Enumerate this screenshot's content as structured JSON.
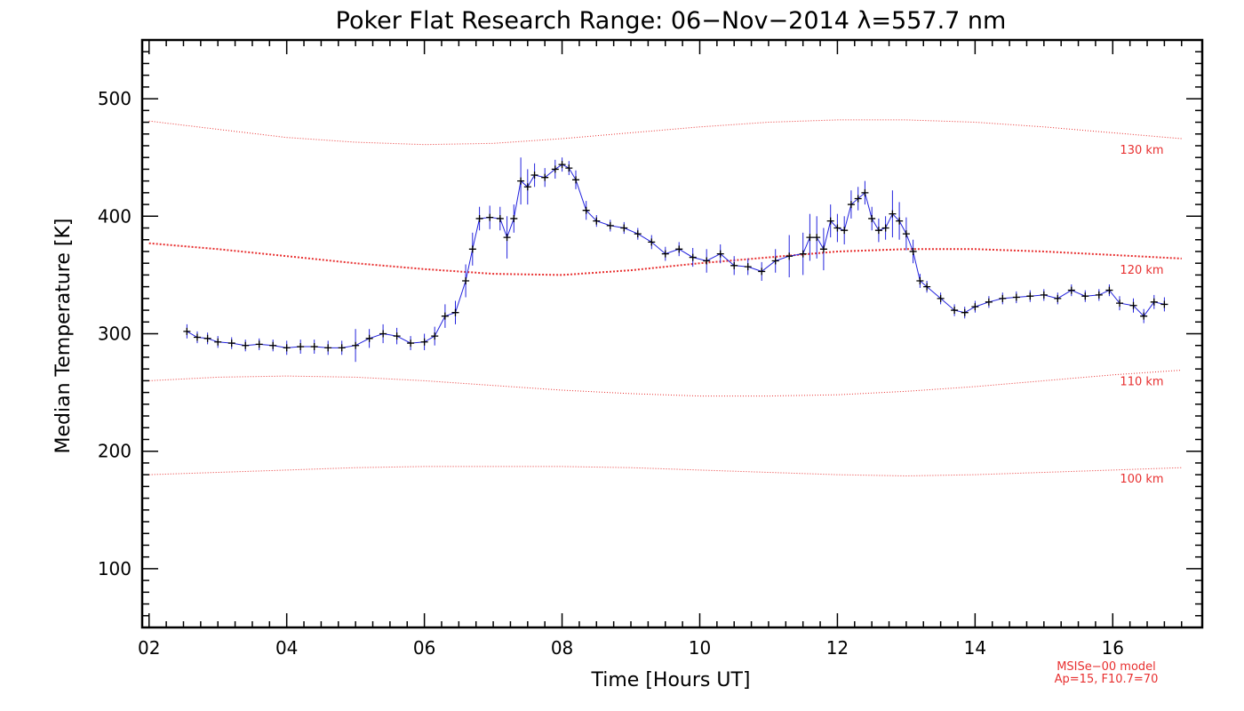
{
  "chart_data": {
    "type": "line",
    "title": "Poker Flat Research Range: 06−Nov−2014 λ=557.7 nm",
    "xlabel": "Time [Hours UT]",
    "ylabel": "Median Temperature [K]",
    "xlim": [
      1.9,
      17.3
    ],
    "ylim": [
      50,
      550
    ],
    "x_ticks": [
      2,
      4,
      6,
      8,
      10,
      12,
      14,
      16
    ],
    "x_tick_labels": [
      "02",
      "04",
      "06",
      "08",
      "10",
      "12",
      "14",
      "16"
    ],
    "y_ticks": [
      100,
      200,
      300,
      400,
      500
    ],
    "y_tick_labels": [
      "100",
      "200",
      "300",
      "400",
      "500"
    ],
    "grid": false,
    "series": [
      {
        "color": "#000000",
        "error_color": "#2222dd",
        "x": [
          2.55,
          2.7,
          2.85,
          3.0,
          3.2,
          3.4,
          3.6,
          3.8,
          4.0,
          4.2,
          4.4,
          4.6,
          4.8,
          5.0,
          5.2,
          5.4,
          5.6,
          5.8,
          6.0,
          6.15,
          6.3,
          6.45,
          6.6,
          6.7,
          6.8,
          6.95,
          7.1,
          7.2,
          7.3,
          7.4,
          7.5,
          7.6,
          7.75,
          7.9,
          8.0,
          8.1,
          8.2,
          8.35,
          8.5,
          8.7,
          8.9,
          9.1,
          9.3,
          9.5,
          9.7,
          9.9,
          10.1,
          10.3,
          10.5,
          10.7,
          10.9,
          11.1,
          11.3,
          11.5,
          11.6,
          11.7,
          11.8,
          11.9,
          12.0,
          12.1,
          12.2,
          12.3,
          12.4,
          12.5,
          12.6,
          12.7,
          12.8,
          12.9,
          13.0,
          13.1,
          13.2,
          13.3,
          13.5,
          13.7,
          13.85,
          14.0,
          14.2,
          14.4,
          14.6,
          14.8,
          15.0,
          15.2,
          15.4,
          15.6,
          15.8,
          15.95,
          16.1,
          16.3,
          16.45,
          16.6,
          16.75
        ],
        "y": [
          302,
          297,
          296,
          293,
          292,
          290,
          291,
          290,
          288,
          289,
          289,
          288,
          288,
          290,
          296,
          300,
          298,
          292,
          293,
          298,
          315,
          318,
          345,
          372,
          398,
          399,
          398,
          382,
          398,
          430,
          425,
          435,
          433,
          440,
          444,
          441,
          431,
          405,
          396,
          392,
          390,
          385,
          378,
          368,
          372,
          365,
          362,
          368,
          358,
          357,
          353,
          362,
          366,
          368,
          382,
          382,
          372,
          396,
          390,
          388,
          410,
          415,
          420,
          398,
          388,
          390,
          402,
          396,
          385,
          370,
          345,
          340,
          330,
          320,
          318,
          323,
          327,
          330,
          331,
          332,
          333,
          330,
          337,
          332,
          333,
          337,
          326,
          324,
          315,
          327,
          325
        ],
        "err": [
          6,
          5,
          5,
          5,
          5,
          5,
          5,
          5,
          6,
          6,
          6,
          6,
          6,
          14,
          8,
          8,
          7,
          6,
          7,
          8,
          10,
          10,
          14,
          14,
          10,
          10,
          10,
          18,
          12,
          20,
          15,
          10,
          8,
          8,
          6,
          6,
          8,
          8,
          5,
          5,
          5,
          5,
          6,
          6,
          6,
          8,
          10,
          8,
          8,
          7,
          8,
          10,
          18,
          18,
          20,
          18,
          18,
          14,
          12,
          12,
          12,
          10,
          10,
          10,
          10,
          10,
          20,
          16,
          14,
          10,
          6,
          5,
          5,
          5,
          5,
          5,
          5,
          5,
          5,
          5,
          5,
          5,
          5,
          5,
          5,
          5,
          6,
          6,
          6,
          6,
          6
        ]
      }
    ],
    "model_curves": [
      {
        "label": "130 km",
        "color": "#e83030",
        "style": "dotted-thin",
        "x": [
          2.0,
          3.0,
          4.0,
          5.0,
          6.0,
          7.0,
          8.0,
          9.0,
          10.0,
          11.0,
          12.0,
          13.0,
          14.0,
          15.0,
          16.0,
          17.0
        ],
        "y": [
          481,
          474,
          467,
          463,
          461,
          462,
          466,
          471,
          476,
          480,
          482,
          482,
          480,
          476,
          471,
          466
        ]
      },
      {
        "label": "120 km",
        "color": "#e83030",
        "style": "dotted-bold",
        "x": [
          2.0,
          3.0,
          4.0,
          5.0,
          6.0,
          7.0,
          8.0,
          9.0,
          10.0,
          11.0,
          12.0,
          13.0,
          14.0,
          15.0,
          16.0,
          17.0
        ],
        "y": [
          377,
          372,
          366,
          360,
          355,
          351,
          350,
          354,
          360,
          365,
          370,
          372,
          372,
          370,
          367,
          364
        ]
      },
      {
        "label": "110 km",
        "color": "#e83030",
        "style": "dotted-thin",
        "x": [
          2.0,
          3.0,
          4.0,
          5.0,
          6.0,
          7.0,
          8.0,
          9.0,
          10.0,
          11.0,
          12.0,
          13.0,
          14.0,
          15.0,
          16.0,
          17.0
        ],
        "y": [
          260,
          263,
          264,
          263,
          260,
          256,
          252,
          249,
          247,
          247,
          248,
          251,
          255,
          260,
          265,
          269
        ]
      },
      {
        "label": "100 km",
        "color": "#e83030",
        "style": "dotted-thin",
        "x": [
          2.0,
          3.0,
          4.0,
          5.0,
          6.0,
          7.0,
          8.0,
          9.0,
          10.0,
          11.0,
          12.0,
          13.0,
          14.0,
          15.0,
          16.0,
          17.0
        ],
        "y": [
          180,
          182,
          184,
          186,
          187,
          187,
          187,
          186,
          184,
          182,
          180,
          179,
          180,
          182,
          184,
          186
        ]
      }
    ],
    "model_note": [
      "MSISe−00 model",
      "Ap=15, F10.7=70"
    ]
  }
}
